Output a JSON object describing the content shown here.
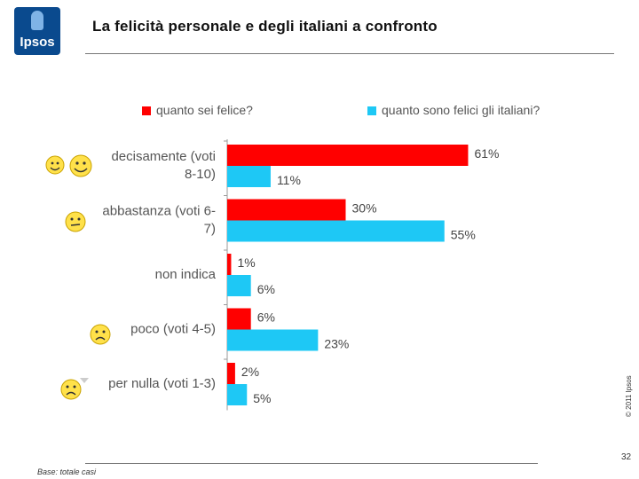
{
  "header": {
    "logo_text": "Ipsos",
    "title": "La felicità personale e degli italiani a confronto"
  },
  "colors": {
    "personal": "#ff0000",
    "italians": "#1ec8f5"
  },
  "chart_data": {
    "type": "bar",
    "orientation": "horizontal",
    "categories": [
      "decisamente (voti 8-10)",
      "abbastanza (voti 6-7)",
      "non indica",
      "poco (voti 4-5)",
      "per nulla (voti 1-3)"
    ],
    "category_lines": [
      [
        "decisamente (voti",
        "8-10)"
      ],
      [
        "abbastanza (voti 6-",
        "7)"
      ],
      [
        "non indica"
      ],
      [
        "poco (voti 4-5)"
      ],
      [
        "per nulla (voti 1-3)"
      ]
    ],
    "series": [
      {
        "name": "quanto sei felice?",
        "values": [
          61,
          30,
          1,
          6,
          2
        ],
        "labels": [
          "61%",
          "30%",
          "1%",
          "6%",
          "2%"
        ]
      },
      {
        "name": "quanto sono felici gli italiani?",
        "values": [
          11,
          55,
          6,
          23,
          5
        ],
        "labels": [
          "11%",
          "55%",
          "6%",
          "23%",
          "5%"
        ]
      }
    ],
    "unit": "%",
    "xlim": [
      0,
      70
    ],
    "grid": false,
    "legend_position": "top"
  },
  "footer": {
    "copyright": "© 2011 Ipsos",
    "base_note": "Base: totale casi",
    "page_number": "32"
  }
}
